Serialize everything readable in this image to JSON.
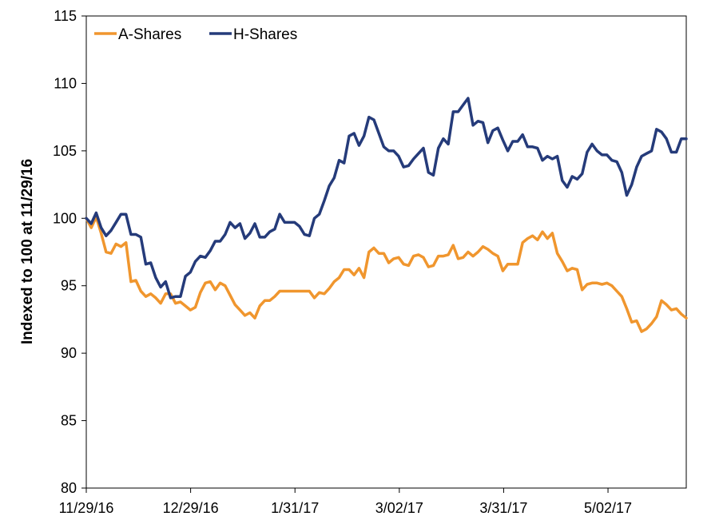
{
  "chart_data": {
    "type": "line",
    "ylabel": "Indexed to 100 at 11/29/16",
    "xlabel": "",
    "ylim": [
      80,
      115
    ],
    "yticks": [
      80,
      85,
      90,
      95,
      100,
      105,
      110,
      115
    ],
    "xticks": [
      "11/29/16",
      "12/29/16",
      "1/31/17",
      "3/02/17",
      "3/31/17",
      "5/02/17"
    ],
    "grid": false,
    "legend": "top-left",
    "colors": {
      "A-Shares": "#F0962E",
      "H-Shares": "#253B7A"
    },
    "series": [
      {
        "name": "A-Shares",
        "values": [
          100.0,
          99.3,
          100.1,
          98.9,
          97.5,
          97.4,
          98.1,
          97.9,
          98.2,
          95.3,
          95.4,
          94.6,
          94.2,
          94.4,
          94.1,
          93.7,
          94.4,
          94.4,
          93.7,
          93.8,
          93.5,
          93.2,
          93.4,
          94.5,
          95.2,
          95.3,
          94.7,
          95.2,
          95.0,
          94.3,
          93.6,
          93.2,
          92.8,
          93.0,
          92.6,
          93.5,
          93.9,
          93.9,
          94.2,
          94.6,
          94.6,
          94.6,
          94.6,
          94.6,
          94.6,
          94.6,
          94.1,
          94.5,
          94.4,
          94.8,
          95.3,
          95.6,
          96.2,
          96.2,
          95.8,
          96.3,
          95.6,
          97.5,
          97.8,
          97.4,
          97.4,
          96.7,
          97.0,
          97.1,
          96.6,
          96.5,
          97.2,
          97.3,
          97.1,
          96.4,
          96.5,
          97.2,
          97.2,
          97.3,
          98.0,
          97.0,
          97.1,
          97.5,
          97.2,
          97.5,
          97.9,
          97.7,
          97.4,
          97.2,
          96.1,
          96.6,
          96.6,
          96.6,
          98.2,
          98.5,
          98.7,
          98.4,
          99.0,
          98.5,
          98.9,
          97.4,
          96.8,
          96.1,
          96.3,
          96.2,
          94.7,
          95.1,
          95.2,
          95.2,
          95.1,
          95.2,
          95.0,
          94.6,
          94.2,
          93.3,
          92.3,
          92.4,
          91.6,
          91.8,
          92.2,
          92.7,
          93.9,
          93.6,
          93.2,
          93.3,
          92.9,
          92.6
        ]
      },
      {
        "name": "H-Shares",
        "values": [
          100.0,
          99.6,
          100.4,
          99.3,
          98.7,
          99.1,
          99.7,
          100.3,
          100.3,
          98.8,
          98.8,
          98.6,
          96.6,
          96.7,
          95.6,
          94.9,
          95.3,
          94.1,
          94.2,
          94.2,
          95.7,
          96.0,
          96.8,
          97.2,
          97.1,
          97.6,
          98.3,
          98.3,
          98.8,
          99.7,
          99.3,
          99.6,
          98.5,
          98.9,
          99.6,
          98.6,
          98.6,
          99.0,
          99.2,
          100.3,
          99.7,
          99.7,
          99.7,
          99.4,
          98.8,
          98.7,
          100.0,
          100.3,
          101.3,
          102.4,
          103.0,
          104.3,
          104.1,
          106.1,
          106.3,
          105.4,
          106.1,
          107.5,
          107.3,
          106.3,
          105.3,
          105.0,
          105.0,
          104.6,
          103.8,
          103.9,
          104.4,
          104.8,
          105.2,
          103.4,
          103.2,
          105.2,
          105.9,
          105.5,
          107.9,
          107.9,
          108.4,
          108.9,
          106.9,
          107.2,
          107.1,
          105.6,
          106.5,
          106.7,
          105.8,
          105.0,
          105.7,
          105.7,
          106.2,
          105.3,
          105.3,
          105.2,
          104.3,
          104.6,
          104.4,
          104.6,
          102.8,
          102.3,
          103.1,
          102.9,
          103.3,
          104.9,
          105.5,
          105.0,
          104.7,
          104.7,
          104.3,
          104.2,
          103.4,
          101.7,
          102.5,
          103.8,
          104.6,
          104.8,
          105.0,
          106.6,
          106.4,
          105.9,
          104.9,
          104.9,
          105.9,
          105.9
        ]
      }
    ]
  }
}
